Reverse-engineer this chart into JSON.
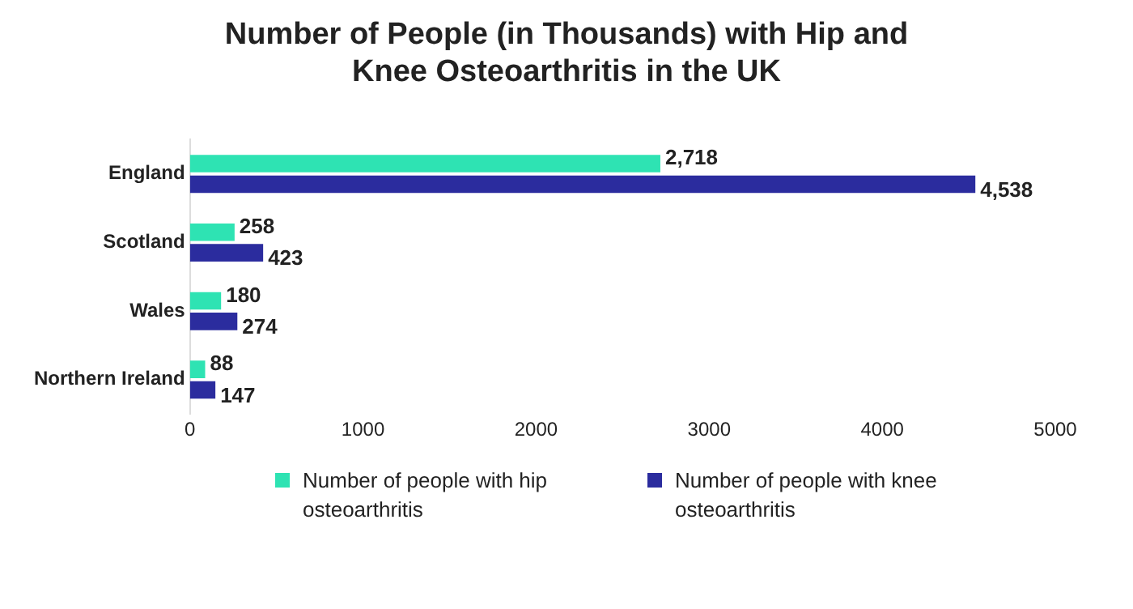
{
  "chart_data": {
    "type": "bar",
    "orientation": "horizontal",
    "title": "Number of People (in Thousands) with Hip and Knee Osteoarthritis in the UK",
    "categories": [
      "England",
      "Scotland",
      "Wales",
      "Northern Ireland"
    ],
    "series": [
      {
        "name": "Number of people with hip osteoarthritis",
        "color": "#2ee3b3",
        "values": [
          2718,
          258,
          180,
          88
        ],
        "value_labels": [
          "2,718",
          "258",
          "180",
          "88"
        ]
      },
      {
        "name": "Number of people with knee osteoarthritis",
        "color": "#2b2c9e",
        "values": [
          4538,
          423,
          274,
          147
        ],
        "value_labels": [
          "4,538",
          "423",
          "274",
          "147"
        ]
      }
    ],
    "xlim": [
      0,
      5000
    ],
    "xticks": [
      0,
      1000,
      2000,
      3000,
      4000,
      5000
    ],
    "grid": false,
    "legend": "bottom"
  }
}
